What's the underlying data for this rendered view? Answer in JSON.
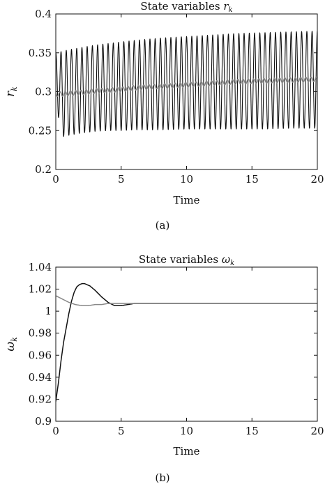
{
  "chart_data": [
    {
      "type": "line",
      "title": "State variables r_k",
      "title_text": "State variables ",
      "title_symbol": "r",
      "title_subscript": "k",
      "xlabel": "Time",
      "ylabel": "r",
      "ylabel_subscript": "k",
      "caption": "(a)",
      "xlim": [
        0,
        20
      ],
      "ylim": [
        0.2,
        0.4
      ],
      "xticks": [
        0,
        5,
        10,
        15,
        20
      ],
      "yticks": [
        0.2,
        0.25,
        0.3,
        0.35,
        0.4
      ],
      "xtick_labels": [
        "0",
        "5",
        "10",
        "15",
        "20"
      ],
      "ytick_labels": [
        "0.2",
        "0.25",
        "0.3",
        "0.35",
        "0.4"
      ],
      "grid": false,
      "series": [
        {
          "color": "#111111",
          "description": "oscillating",
          "x": [
            0,
            0.25,
            0.5,
            1,
            2,
            3,
            4,
            5,
            6,
            8,
            10,
            12,
            14,
            16,
            18,
            20
          ],
          "upper_envelope": [
            0.35,
            0.351,
            0.352,
            0.354,
            0.357,
            0.36,
            0.362,
            0.364,
            0.366,
            0.369,
            0.371,
            0.373,
            0.375,
            0.376,
            0.377,
            0.378
          ],
          "lower_envelope": [
            0.3,
            0.26,
            0.242,
            0.244,
            0.247,
            0.249,
            0.25,
            0.25,
            0.251,
            0.251,
            0.252,
            0.252,
            0.252,
            0.252,
            0.253,
            0.253
          ],
          "period": 0.4
        },
        {
          "color": "#888888",
          "description": "slowly rising with small ripple",
          "x": [
            0,
            0.5,
            1,
            2,
            3,
            4,
            5,
            6,
            8,
            10,
            12,
            14,
            16,
            18,
            20
          ],
          "y": [
            0.297,
            0.297,
            0.298,
            0.299,
            0.301,
            0.302,
            0.303,
            0.305,
            0.307,
            0.309,
            0.311,
            0.313,
            0.314,
            0.315,
            0.316
          ],
          "ripple": 0.003
        }
      ]
    },
    {
      "type": "line",
      "title": "State variables ω_k",
      "title_text": "State variables ",
      "title_symbol": "ω",
      "title_subscript": "k",
      "xlabel": "Time",
      "ylabel": "ω",
      "ylabel_subscript": "k",
      "caption": "(b)",
      "xlim": [
        0,
        20
      ],
      "ylim": [
        0.9,
        1.04
      ],
      "xticks": [
        0,
        5,
        10,
        15,
        20
      ],
      "yticks": [
        0.9,
        0.92,
        0.94,
        0.96,
        0.98,
        1,
        1.02,
        1.04
      ],
      "xtick_labels": [
        "0",
        "5",
        "10",
        "15",
        "20"
      ],
      "ytick_labels": [
        "0.9",
        "0.92",
        "0.94",
        "0.96",
        "0.98",
        "1",
        "1.02",
        "1.04"
      ],
      "grid": false,
      "series": [
        {
          "color": "#111111",
          "x": [
            0,
            0.2,
            0.4,
            0.6,
            0.8,
            1.0,
            1.2,
            1.4,
            1.6,
            1.8,
            2.0,
            2.2,
            2.4,
            2.6,
            2.8,
            3.0,
            3.5,
            4.0,
            4.5,
            5.0,
            5.5,
            6.0,
            7.0,
            8.0,
            10,
            12,
            15,
            20
          ],
          "y": [
            0.918,
            0.935,
            0.955,
            0.972,
            0.985,
            0.998,
            1.009,
            1.017,
            1.022,
            1.024,
            1.025,
            1.025,
            1.024,
            1.023,
            1.021,
            1.019,
            1.013,
            1.008,
            1.005,
            1.005,
            1.006,
            1.007,
            1.007,
            1.007,
            1.007,
            1.007,
            1.007,
            1.007
          ]
        },
        {
          "color": "#888888",
          "x": [
            0,
            0.5,
            1.0,
            1.5,
            2.0,
            2.5,
            3.0,
            3.5,
            4.0,
            5.0,
            6.0,
            8.0,
            10,
            15,
            20
          ],
          "y": [
            1.014,
            1.011,
            1.008,
            1.006,
            1.005,
            1.005,
            1.006,
            1.006,
            1.007,
            1.007,
            1.007,
            1.007,
            1.007,
            1.007,
            1.007
          ]
        }
      ]
    }
  ]
}
